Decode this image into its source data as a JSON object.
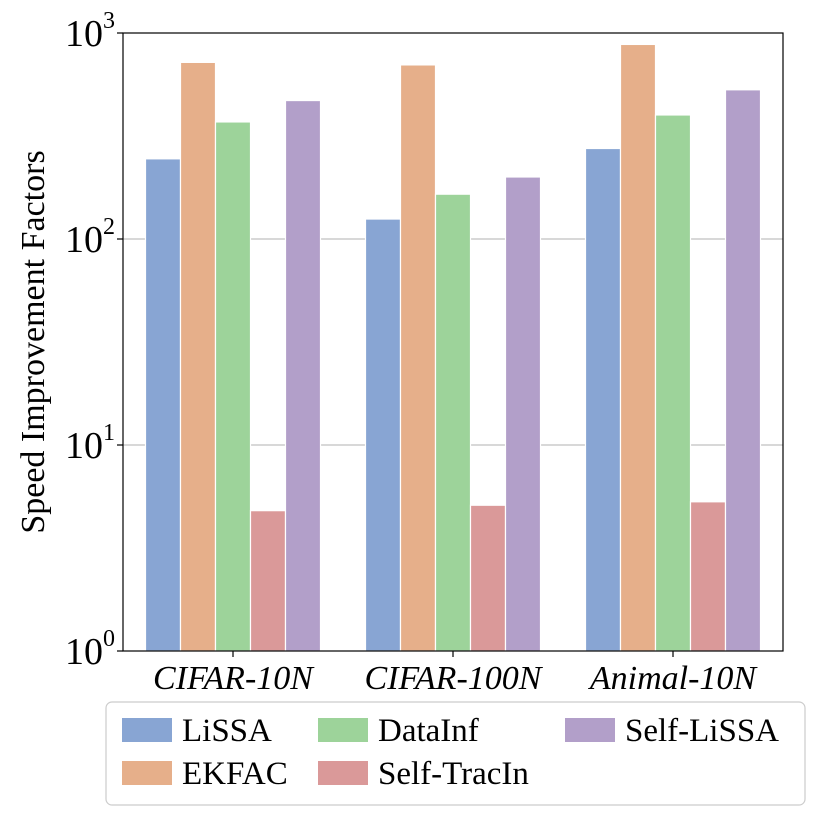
{
  "chart_data": {
    "type": "bar",
    "yscale": "log",
    "ylim": [
      1,
      1000
    ],
    "ylabel": "Speed Improvement Factors",
    "xlabel": "",
    "yticks": [
      {
        "base": "10",
        "exp": "0"
      },
      {
        "base": "10",
        "exp": "1"
      },
      {
        "base": "10",
        "exp": "2"
      },
      {
        "base": "10",
        "exp": "3"
      }
    ],
    "grid": "horizontal",
    "categories": [
      "CIFAR-10N",
      "CIFAR-100N",
      "Animal-10N"
    ],
    "series": [
      {
        "name": "LiSSA",
        "color": "#88a5d3",
        "values": [
          245,
          125,
          275
        ]
      },
      {
        "name": "EKFAC",
        "color": "#e6af8a",
        "values": [
          720,
          700,
          880
        ]
      },
      {
        "name": "DataInf",
        "color": "#9dd39a",
        "values": [
          370,
          165,
          400
        ]
      },
      {
        "name": "Self-TracIn",
        "color": "#da9999",
        "values": [
          4.8,
          5.1,
          5.3
        ]
      },
      {
        "name": "Self-LiSSA",
        "color": "#b29fc9",
        "values": [
          470,
          200,
          530
        ]
      }
    ],
    "legend": {
      "position": "bottom",
      "columns": 3
    }
  }
}
